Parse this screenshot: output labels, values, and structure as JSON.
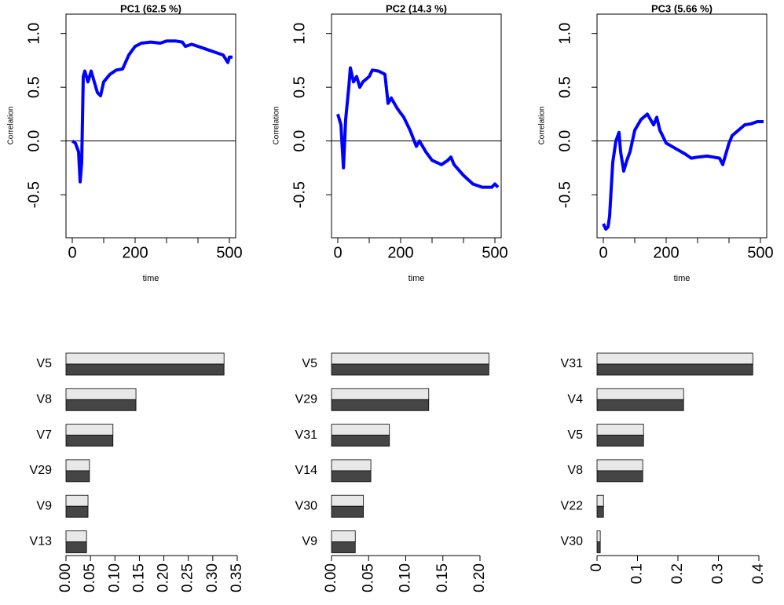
{
  "chart_data": [
    {
      "type": "line",
      "title": "PC1 (62.5 %)",
      "xlabel": "time",
      "ylabel": "Correlation",
      "color": "#0000ff",
      "x": [
        0,
        10,
        20,
        25,
        30,
        35,
        40,
        50,
        60,
        70,
        80,
        90,
        100,
        120,
        140,
        160,
        180,
        200,
        220,
        250,
        280,
        300,
        330,
        350,
        360,
        380,
        420,
        450,
        480,
        495,
        500,
        510
      ],
      "values": [
        0,
        -0.02,
        -0.1,
        -0.38,
        -0.2,
        0.6,
        0.65,
        0.55,
        0.65,
        0.55,
        0.45,
        0.42,
        0.55,
        0.62,
        0.66,
        0.67,
        0.8,
        0.88,
        0.91,
        0.92,
        0.91,
        0.93,
        0.93,
        0.92,
        0.88,
        0.9,
        0.86,
        0.83,
        0.8,
        0.73,
        0.78,
        0.78
      ],
      "xlim": [
        -20,
        520
      ],
      "ylim": [
        -0.9,
        1.18
      ],
      "xticks": [
        0,
        200,
        500
      ],
      "minor_xticks": [
        100,
        300,
        400
      ],
      "yticks": [
        -0.5,
        {
          "value": 0,
          "label": "0.0"
        },
        0.5,
        {
          "value": 1,
          "label": "1.0"
        }
      ],
      "reference_line": 0
    },
    {
      "type": "line",
      "title": "PC2 (14.3 %)",
      "xlabel": "time",
      "ylabel": "Correlation",
      "color": "#0000ff",
      "x": [
        0,
        10,
        18,
        25,
        35,
        40,
        50,
        60,
        70,
        80,
        100,
        110,
        130,
        150,
        160,
        170,
        190,
        210,
        230,
        250,
        260,
        280,
        300,
        330,
        350,
        360,
        370,
        400,
        430,
        460,
        490,
        500,
        510
      ],
      "values": [
        0.25,
        0.15,
        -0.25,
        0.2,
        0.5,
        0.68,
        0.55,
        0.6,
        0.5,
        0.55,
        0.6,
        0.66,
        0.65,
        0.62,
        0.35,
        0.4,
        0.3,
        0.22,
        0.1,
        -0.05,
        0,
        -0.1,
        -0.18,
        -0.22,
        -0.18,
        -0.15,
        -0.22,
        -0.32,
        -0.4,
        -0.43,
        -0.43,
        -0.4,
        -0.43
      ],
      "xlim": [
        -20,
        520
      ],
      "ylim": [
        -0.9,
        1.18
      ],
      "xticks": [
        0,
        200,
        500
      ],
      "minor_xticks": [
        100,
        300,
        400
      ],
      "yticks": [
        -0.5,
        {
          "value": 0,
          "label": "0.0"
        },
        0.5,
        {
          "value": 1,
          "label": "1.0"
        }
      ],
      "reference_line": 0
    },
    {
      "type": "line",
      "title": "PC3 (5.66 %)",
      "xlabel": "time",
      "ylabel": "Correlation",
      "color": "#0000ff",
      "x": [
        0,
        8,
        15,
        20,
        30,
        40,
        50,
        55,
        65,
        75,
        85,
        100,
        120,
        140,
        150,
        160,
        170,
        180,
        200,
        230,
        260,
        280,
        300,
        330,
        350,
        370,
        380,
        390,
        400,
        410,
        430,
        450,
        470,
        490,
        510
      ],
      "values": [
        -0.77,
        -0.82,
        -0.8,
        -0.7,
        -0.2,
        0,
        0.08,
        -0.1,
        -0.28,
        -0.18,
        -0.1,
        0.1,
        0.2,
        0.25,
        0.2,
        0.15,
        0.22,
        0.1,
        -0.02,
        -0.07,
        -0.12,
        -0.16,
        -0.15,
        -0.14,
        -0.15,
        -0.16,
        -0.22,
        -0.12,
        -0.02,
        0.05,
        0.1,
        0.15,
        0.16,
        0.18,
        0.18
      ],
      "xlim": [
        -20,
        520
      ],
      "ylim": [
        -0.9,
        1.18
      ],
      "xticks": [
        0,
        200,
        500
      ],
      "minor_xticks": [
        100,
        300,
        400
      ],
      "yticks": [
        -0.5,
        {
          "value": 0,
          "label": "0.0"
        },
        0.5,
        {
          "value": 1,
          "label": "1.0"
        }
      ],
      "reference_line": 0
    },
    {
      "type": "bar",
      "categories": [
        "V5",
        "V8",
        "V7",
        "V29",
        "V9",
        "V13"
      ],
      "series": [
        {
          "color": "#e8e8e8",
          "values": [
            0.323,
            0.143,
            0.096,
            0.048,
            0.045,
            0.042
          ]
        },
        {
          "color": "#454545",
          "values": [
            0.323,
            0.143,
            0.096,
            0.048,
            0.045,
            0.042
          ]
        }
      ],
      "xlim": [
        0,
        0.35
      ],
      "xticks": [
        {
          "value": 0,
          "label": "0.00"
        },
        {
          "value": 0.05,
          "label": "0.05"
        },
        {
          "value": 0.1,
          "label": "0.10"
        },
        {
          "value": 0.15,
          "label": "0.15"
        },
        {
          "value": 0.2,
          "label": "0.20"
        },
        {
          "value": 0.25,
          "label": "0.25"
        },
        {
          "value": 0.3,
          "label": "0.30"
        },
        {
          "value": 0.35,
          "label": "0.35"
        }
      ]
    },
    {
      "type": "bar",
      "categories": [
        "V5",
        "V29",
        "V31",
        "V14",
        "V30",
        "V9"
      ],
      "series": [
        {
          "color": "#e8e8e8",
          "values": [
            0.212,
            0.131,
            0.078,
            0.053,
            0.043,
            0.032
          ]
        },
        {
          "color": "#454545",
          "values": [
            0.212,
            0.131,
            0.078,
            0.053,
            0.043,
            0.032
          ]
        }
      ],
      "xlim": [
        0,
        0.2
      ],
      "xticks": [
        {
          "value": 0,
          "label": "0.00"
        },
        {
          "value": 0.05,
          "label": "0.05"
        },
        {
          "value": 0.1,
          "label": "0.10"
        },
        {
          "value": 0.15,
          "label": "0.15"
        },
        {
          "value": 0.2,
          "label": "0.20"
        }
      ]
    },
    {
      "type": "bar",
      "categories": [
        "V31",
        "V4",
        "V5",
        "V8",
        "V22",
        "V30"
      ],
      "series": [
        {
          "color": "#e8e8e8",
          "values": [
            0.385,
            0.214,
            0.115,
            0.113,
            0.016,
            0.008
          ]
        },
        {
          "color": "#454545",
          "values": [
            0.385,
            0.214,
            0.115,
            0.113,
            0.016,
            0.008
          ]
        }
      ],
      "xlim": [
        0,
        0.4
      ],
      "xticks": [
        0,
        0.1,
        0.2,
        0.3,
        0.4
      ]
    }
  ]
}
